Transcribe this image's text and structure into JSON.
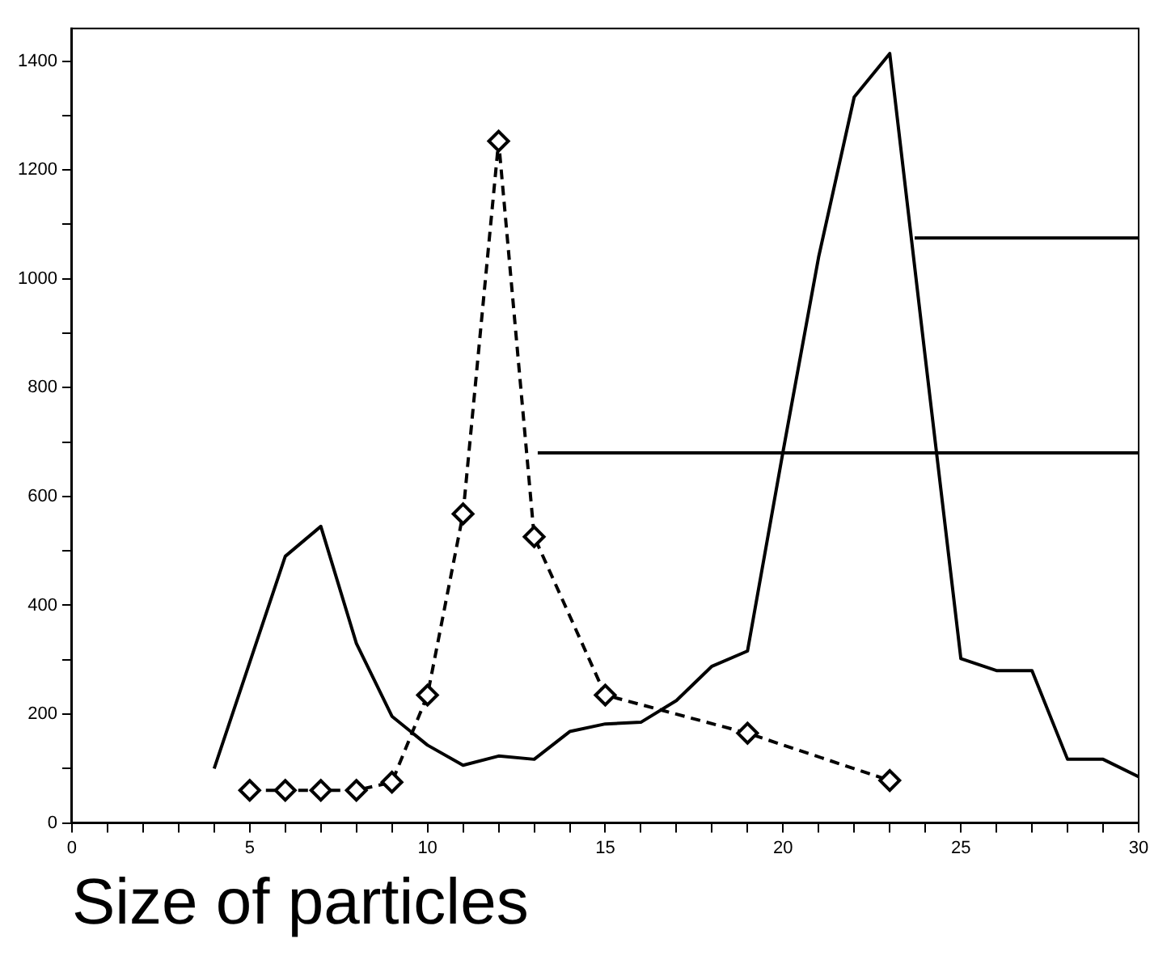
{
  "chart_data": {
    "type": "line",
    "xlabel": "Size of particles",
    "xlim": [
      0,
      30
    ],
    "ylim": [
      0,
      1460
    ],
    "xticks": [
      0,
      {
        "value": 1,
        "label": null
      },
      {
        "value": 2,
        "label": null
      },
      {
        "value": 3,
        "label": null
      },
      {
        "value": 4,
        "label": null
      },
      5,
      {
        "value": 6,
        "label": null
      },
      {
        "value": 7,
        "label": null
      },
      {
        "value": 8,
        "label": null
      },
      {
        "value": 9,
        "label": null
      },
      10,
      {
        "value": 11,
        "label": null
      },
      {
        "value": 12,
        "label": null
      },
      {
        "value": 13,
        "label": null
      },
      {
        "value": 14,
        "label": null
      },
      15,
      {
        "value": 16,
        "label": null
      },
      {
        "value": 17,
        "label": null
      },
      {
        "value": 18,
        "label": null
      },
      {
        "value": 19,
        "label": null
      },
      20,
      {
        "value": 21,
        "label": null
      },
      {
        "value": 22,
        "label": null
      },
      {
        "value": 23,
        "label": null
      },
      {
        "value": 24,
        "label": null
      },
      25,
      {
        "value": 26,
        "label": null
      },
      {
        "value": 27,
        "label": null
      },
      {
        "value": 28,
        "label": null
      },
      {
        "value": 29,
        "label": null
      },
      30
    ],
    "yticks": [
      0,
      {
        "value": 100,
        "label": null
      },
      200,
      {
        "value": 300,
        "label": null
      },
      400,
      {
        "value": 500,
        "label": null
      },
      600,
      {
        "value": 700,
        "label": null
      },
      800,
      {
        "value": 900,
        "label": null
      },
      1000,
      {
        "value": 1100,
        "label": null
      },
      1200,
      {
        "value": 1300,
        "label": null
      },
      1400
    ],
    "grid": false,
    "legend": false,
    "series": [
      {
        "color": "#000000",
        "line_style": "solid",
        "marker": "none",
        "x": [
          4,
          6,
          7,
          8,
          9,
          10,
          11,
          12,
          13,
          14,
          15,
          16,
          17,
          18,
          19,
          20,
          21,
          22,
          23,
          24,
          25,
          26,
          27,
          28,
          29,
          30
        ],
        "values": [
          100,
          490,
          545,
          330,
          196,
          143,
          106,
          123,
          117,
          168,
          182,
          185,
          225,
          288,
          316,
          683,
          1040,
          1334,
          1414,
          855,
          302,
          280,
          280,
          117,
          117,
          85
        ]
      },
      {
        "color": "#000000",
        "line_style": "dashed",
        "marker": "diamond",
        "x": [
          5,
          6,
          7,
          8,
          9,
          10,
          11,
          12,
          13,
          15,
          19,
          23
        ],
        "values": [
          60,
          60,
          60,
          60,
          75,
          235,
          568,
          1253,
          526,
          235,
          165,
          78
        ]
      },
      {
        "type": "line",
        "color": "#000000",
        "line_style": "solid",
        "marker": "none",
        "x": [
          13.1,
          30
        ],
        "values": [
          680,
          680
        ]
      },
      {
        "type": "line",
        "color": "#000000",
        "line_style": "solid",
        "marker": "none",
        "x": [
          23.7,
          30
        ],
        "values": [
          1075,
          1075
        ]
      }
    ]
  }
}
